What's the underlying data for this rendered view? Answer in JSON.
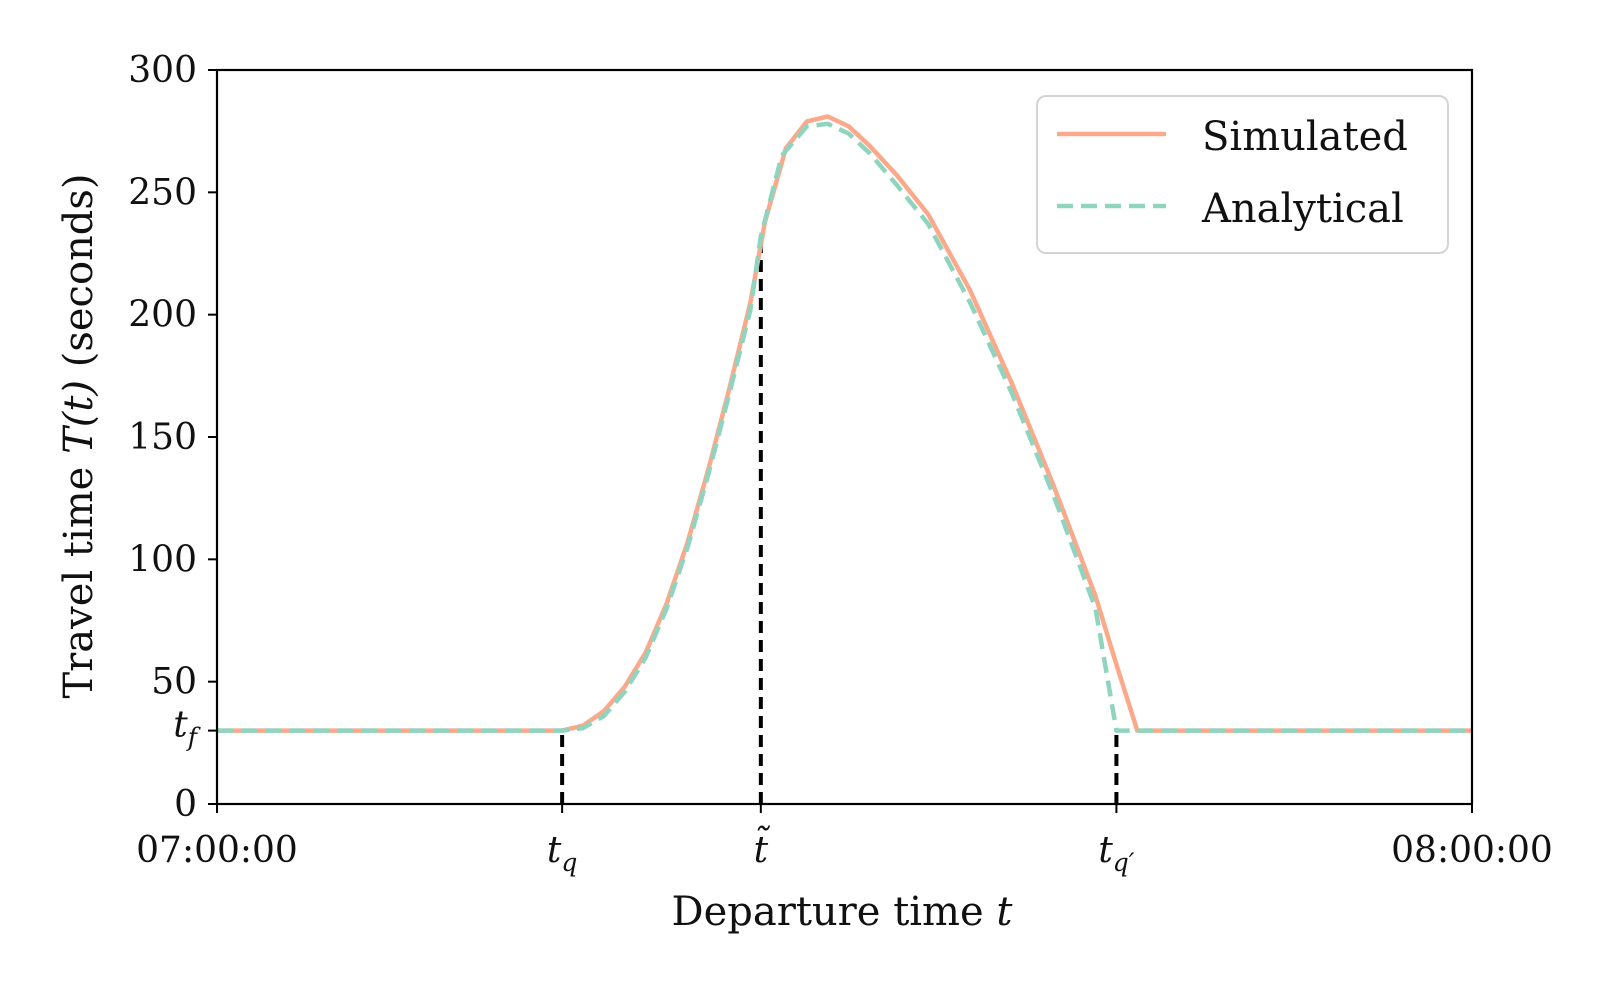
{
  "chart_data": {
    "type": "line",
    "xlabel": "Departure time",
    "xlabel_var": "t",
    "ylabel": "Travel time",
    "ylabel_var": "T(t)",
    "ylabel_unit": "(seconds)",
    "xlim": [
      0,
      60
    ],
    "ylim": [
      0,
      300
    ],
    "x_unit": "minutes after 07:00:00",
    "yticks": [
      {
        "value": 0,
        "label": "0"
      },
      {
        "value": 30,
        "label": "t",
        "sub": "f",
        "math": true
      },
      {
        "value": 50,
        "label": "50"
      },
      {
        "value": 100,
        "label": "100"
      },
      {
        "value": 150,
        "label": "150"
      },
      {
        "value": 200,
        "label": "200"
      },
      {
        "value": 250,
        "label": "250"
      },
      {
        "value": 300,
        "label": "300"
      }
    ],
    "xticks": [
      {
        "value": 0,
        "label": "07:00:00"
      },
      {
        "value": 16.5,
        "label": "t",
        "sub": "q",
        "math": true
      },
      {
        "value": 26,
        "label": "t̃",
        "math": true
      },
      {
        "value": 43,
        "label": "t",
        "sub": "q′",
        "math": true
      },
      {
        "value": 60,
        "label": "08:00:00"
      }
    ],
    "markers": [
      {
        "x": 16.5,
        "y": 30
      },
      {
        "x": 26,
        "y": 232
      },
      {
        "x": 43,
        "y": 30
      }
    ],
    "legend": "top-right",
    "grid": false,
    "series": [
      {
        "name": "Simulated",
        "color": "#fba98a",
        "style": "solid",
        "x": [
          0,
          16.5,
          17.5,
          18.5,
          19.5,
          20.5,
          21.5,
          22.5,
          23.5,
          24.5,
          25.5,
          26.2,
          27.2,
          28.2,
          29.2,
          30.2,
          31.2,
          32.5,
          34,
          36,
          38,
          40,
          42,
          43,
          44,
          60
        ],
        "y": [
          30,
          30,
          32,
          38,
          48,
          62,
          82,
          107,
          137,
          170,
          205,
          238,
          268,
          279,
          281,
          277,
          269,
          257,
          241,
          210,
          172,
          130,
          85,
          57,
          30,
          30
        ]
      },
      {
        "name": "Analytical",
        "color": "#8fd4bf",
        "style": "dashed",
        "x": [
          0,
          16.5,
          17.5,
          18.5,
          19.5,
          20.5,
          21.5,
          22.5,
          23.5,
          24.5,
          25.5,
          26,
          27,
          28.2,
          29.2,
          30.2,
          31.2,
          32.5,
          34,
          36,
          38,
          40,
          42,
          43,
          60
        ],
        "y": [
          30,
          30,
          31,
          36,
          46,
          60,
          80,
          105,
          135,
          168,
          202,
          232,
          265,
          277,
          278,
          274,
          266,
          253,
          237,
          205,
          168,
          126,
          80,
          30,
          30
        ]
      }
    ]
  }
}
